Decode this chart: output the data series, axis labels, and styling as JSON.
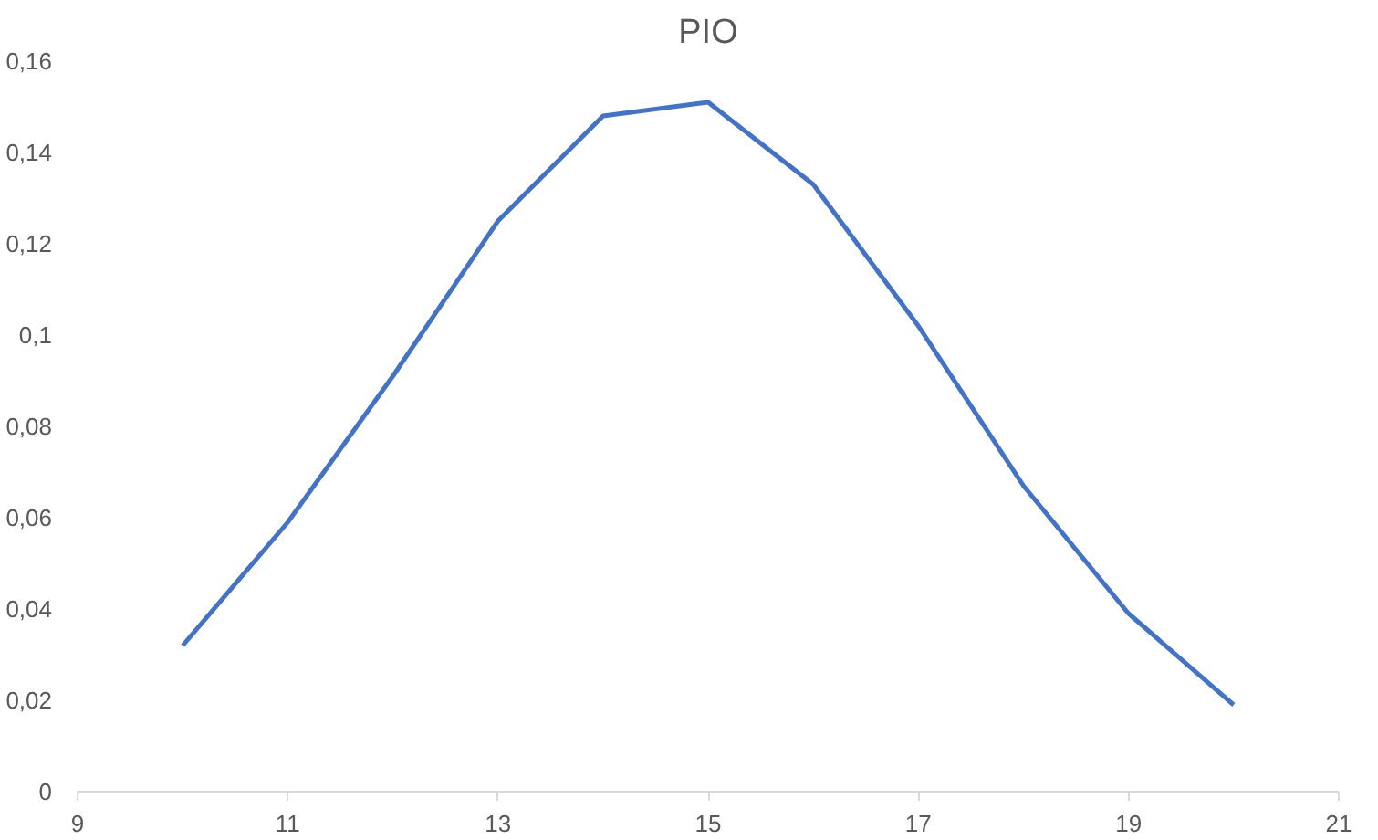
{
  "chart_data": {
    "type": "line",
    "title": "PIO",
    "x": [
      10,
      11,
      12,
      13,
      14,
      15,
      16,
      17,
      18,
      19,
      20
    ],
    "series": [
      {
        "color": "#4472c4",
        "values": [
          0.032,
          0.059,
          0.091,
          0.125,
          0.148,
          0.151,
          0.133,
          0.102,
          0.067,
          0.039,
          0.019
        ]
      }
    ],
    "xlim": [
      9,
      21
    ],
    "xticks": [
      9,
      11,
      13,
      15,
      17,
      19,
      21
    ],
    "ylim": [
      0,
      0.16
    ],
    "yticks": [
      0,
      {
        "value": 0.02,
        "label": "0,02"
      },
      {
        "value": 0.04,
        "label": "0,04"
      },
      {
        "value": 0.06,
        "label": "0,06"
      },
      {
        "value": 0.08,
        "label": "0,08"
      },
      {
        "value": 0.1,
        "label": "0,1"
      },
      {
        "value": 0.12,
        "label": "0,12"
      },
      {
        "value": 0.14,
        "label": "0,14"
      },
      {
        "value": 0.16,
        "label": "0,16"
      }
    ],
    "marker": "none",
    "line_style": "solid"
  }
}
